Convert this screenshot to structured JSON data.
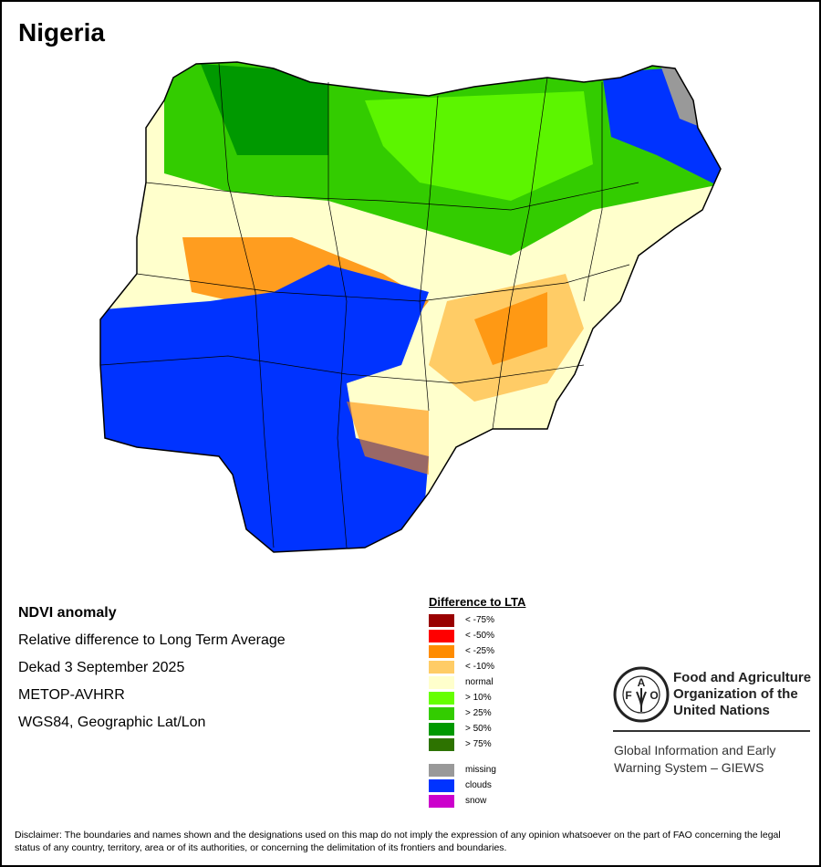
{
  "title": "Nigeria",
  "info": {
    "heading": "NDVI anomaly",
    "subtitle": "Relative difference to Long Term Average",
    "period": "Dekad 3 September 2025",
    "sensor": "METOP-AVHRR",
    "projection": "WGS84, Geographic Lat/Lon"
  },
  "legend": {
    "title": "Difference to LTA",
    "classes": [
      {
        "label": "< -75%",
        "color": "#990000"
      },
      {
        "label": "< -50%",
        "color": "#ff0000"
      },
      {
        "label": "< -25%",
        "color": "#ff8c00"
      },
      {
        "label": "< -10%",
        "color": "#ffcc66"
      },
      {
        "label": "normal",
        "color": "#ffffcc"
      },
      {
        "label": "> 10%",
        "color": "#66ff00"
      },
      {
        "label": "> 25%",
        "color": "#33cc00"
      },
      {
        "label": "> 50%",
        "color": "#009900"
      },
      {
        "label": "> 75%",
        "color": "#2d7300"
      }
    ],
    "other": [
      {
        "label": "missing",
        "color": "#999999"
      },
      {
        "label": "clouds",
        "color": "#0033ff"
      },
      {
        "label": "snow",
        "color": "#cc00cc"
      }
    ]
  },
  "org": {
    "name_lines": [
      "Food and Agriculture",
      "Organization of the",
      "United Nations"
    ],
    "logo_text": "FAO FIAT PANIS",
    "program_lines": [
      "Global Information and Early",
      "Warning System – GIEWS"
    ]
  },
  "disclaimer": "Disclaimer: The boundaries and names shown and the designations used on this map do not imply the expression of any opinion whatsoever on the part of FAO concerning the legal status of any country, territory, area or of its authorities, or concerning the delimitation of its frontiers and boundaries."
}
